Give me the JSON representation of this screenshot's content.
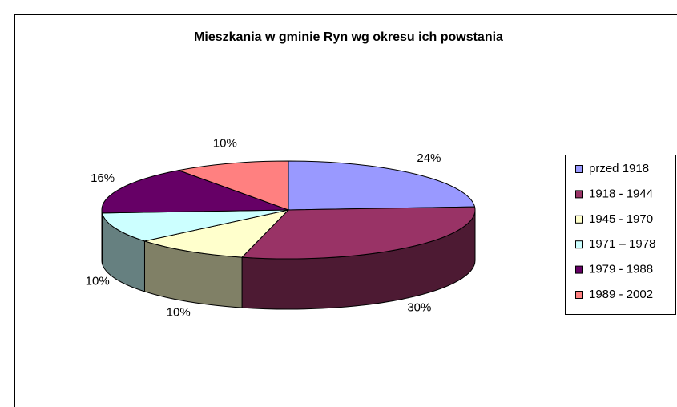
{
  "chart_data": {
    "type": "pie3d",
    "title": "Mieszkania w gminie Ryn wg okresu ich powstania",
    "categories": [
      "przed 1918",
      "1918 - 1944",
      "1945 - 1970",
      "1971 – 1978",
      "1979 - 1988",
      "1989 - 2002"
    ],
    "values": [
      24,
      30,
      10,
      10,
      16,
      10
    ],
    "value_labels": [
      "24%",
      "30%",
      "10%",
      "10%",
      "16%",
      "10%"
    ],
    "colors": [
      "#9999ff",
      "#993366",
      "#ffffcc",
      "#ccffff",
      "#660066",
      "#ff8080"
    ],
    "legend": "right"
  }
}
